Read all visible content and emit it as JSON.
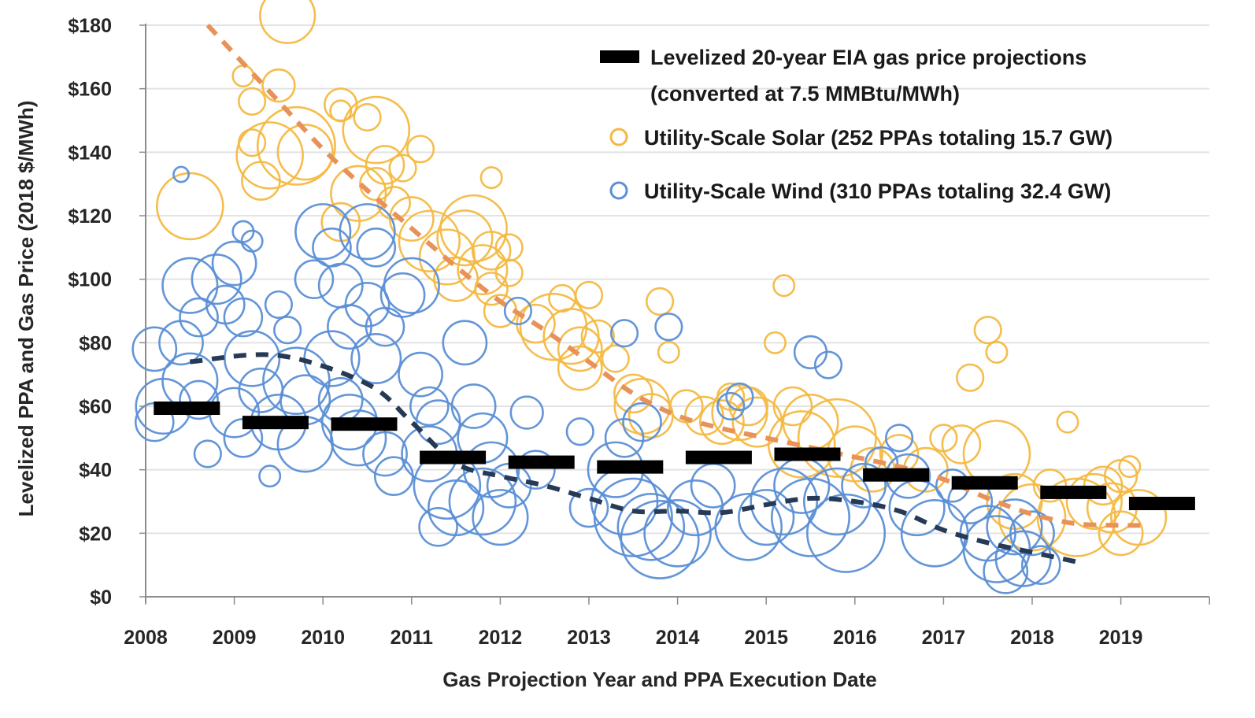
{
  "chart_data": {
    "type": "scatter",
    "title": "",
    "xlabel": "Gas Projection Year and PPA Execution Date",
    "ylabel": "Levelized PPA and Gas Price (2018 $/MWh)",
    "xlim": [
      2008,
      2020
    ],
    "ylim": [
      0,
      180
    ],
    "grid": true,
    "legend_position": "top-right",
    "x_ticks": [
      "2008",
      "2009",
      "2010",
      "2011",
      "2012",
      "2013",
      "2014",
      "2015",
      "2016",
      "2017",
      "2018",
      "2019"
    ],
    "y_ticks": [
      "$0",
      "$20",
      "$40",
      "$60",
      "$80",
      "$100",
      "$120",
      "$140",
      "$160",
      "$180"
    ],
    "y_tick_values": [
      0,
      20,
      40,
      60,
      80,
      100,
      120,
      140,
      160,
      180
    ],
    "colors": {
      "solar": "#F4B942",
      "wind": "#5B8FD6",
      "gas": "#000000",
      "solar_trend": "#E8925A",
      "wind_trend": "#263A55",
      "grid": "#E3E3E3",
      "axis": "#8C8C8C"
    },
    "legend": [
      {
        "key": "gas",
        "line1": "Levelized 20-year EIA gas price projections",
        "line2": "(converted at 7.5 MMBtu/MWh)"
      },
      {
        "key": "solar",
        "line1": "Utility-Scale Solar (252 PPAs totaling 15.7 GW)"
      },
      {
        "key": "wind",
        "line1": "Utility-Scale Wind (310 PPAs totaling 32.4 GW)"
      }
    ],
    "series": [
      {
        "name": "Levelized 20-year EIA gas price projections",
        "kind": "gas-bars",
        "x": [
          2008,
          2009,
          2010,
          2011,
          2012,
          2013,
          2014,
          2015,
          2016,
          2017,
          2018,
          2019
        ],
        "values": [
          59.5,
          55,
          54.5,
          44,
          42.5,
          41,
          44,
          45,
          38.5,
          36,
          33,
          29.5
        ]
      },
      {
        "name": "Utility-Scale Wind trend",
        "kind": "trend",
        "x": [
          2008.5,
          2009.5,
          2010.5,
          2011.0,
          2011.5,
          2012.0,
          2012.5,
          2013.0,
          2013.5,
          2014.0,
          2014.5,
          2015.0,
          2015.5,
          2016.0,
          2016.5,
          2017.0,
          2017.5,
          2018.0,
          2018.5
        ],
        "values": [
          74,
          76,
          67,
          55,
          42,
          38,
          35,
          31,
          27,
          27,
          26.5,
          29,
          31,
          30,
          27,
          21,
          17,
          14,
          11
        ]
      },
      {
        "name": "Utility-Scale Solar trend",
        "kind": "trend",
        "x": [
          2008.7,
          2009.5,
          2010.0,
          2010.5,
          2011.0,
          2011.5,
          2012.0,
          2012.5,
          2013.0,
          2013.5,
          2014.0,
          2014.5,
          2015.0,
          2015.5,
          2016.0,
          2016.5,
          2017.0,
          2017.5,
          2018.0,
          2018.5,
          2019.0,
          2019.3
        ],
        "values": [
          180,
          156,
          141,
          128,
          116,
          104,
          93,
          84,
          74,
          64,
          57,
          53,
          50,
          47,
          44,
          41,
          37,
          31,
          26,
          23,
          22.5,
          22.5
        ]
      },
      {
        "name": "Utility-Scale Solar (252 PPAs totaling 15.7 GW)",
        "kind": "bubbles",
        "points": [
          [
            2008.5,
            123,
            10
          ],
          [
            2009.6,
            183,
            8
          ],
          [
            2009.1,
            164,
            2
          ],
          [
            2009.5,
            161,
            4
          ],
          [
            2009.2,
            156,
            3
          ],
          [
            2009.4,
            139,
            10
          ],
          [
            2009.2,
            143,
            3
          ],
          [
            2009.3,
            131,
            5
          ],
          [
            2009.8,
            140,
            8
          ],
          [
            2009.7,
            142,
            12
          ],
          [
            2010.2,
            155,
            4
          ],
          [
            2010.2,
            153,
            2
          ],
          [
            2010.5,
            151,
            3
          ],
          [
            2010.6,
            147,
            10
          ],
          [
            2010.7,
            136,
            5
          ],
          [
            2010.6,
            130,
            4
          ],
          [
            2010.4,
            127,
            8
          ],
          [
            2010.2,
            118,
            5
          ],
          [
            2010.8,
            124,
            4
          ],
          [
            2010.9,
            135,
            3
          ],
          [
            2011.1,
            141,
            3
          ],
          [
            2011.0,
            119,
            6
          ],
          [
            2011.2,
            112,
            9
          ],
          [
            2011.4,
            107,
            8
          ],
          [
            2011.5,
            100,
            6
          ],
          [
            2011.6,
            113,
            8
          ],
          [
            2011.7,
            116,
            10
          ],
          [
            2011.9,
            109,
            5
          ],
          [
            2011.8,
            103,
            7
          ],
          [
            2011.9,
            97,
            4
          ],
          [
            2012.1,
            102,
            3
          ],
          [
            2012.1,
            110,
            3
          ],
          [
            2011.9,
            132,
            2
          ],
          [
            2012.0,
            90,
            4
          ],
          [
            2012.4,
            86,
            5
          ],
          [
            2012.6,
            85,
            10
          ],
          [
            2012.8,
            82,
            8
          ],
          [
            2012.7,
            94,
            3
          ],
          [
            2013.0,
            95,
            3
          ],
          [
            2012.9,
            78,
            6
          ],
          [
            2013.1,
            82,
            4
          ],
          [
            2013.3,
            75,
            3
          ],
          [
            2012.9,
            72,
            6
          ],
          [
            2013.5,
            64,
            5
          ],
          [
            2013.6,
            60,
            8
          ],
          [
            2013.8,
            93,
            3
          ],
          [
            2013.9,
            77,
            2
          ],
          [
            2013.7,
            57,
            6
          ],
          [
            2014.1,
            60,
            4
          ],
          [
            2014.3,
            57,
            5
          ],
          [
            2014.5,
            55,
            6
          ],
          [
            2014.7,
            58,
            8
          ],
          [
            2014.8,
            60,
            5
          ],
          [
            2014.9,
            55,
            7
          ],
          [
            2014.6,
            63,
            3
          ],
          [
            2015.2,
            98,
            2
          ],
          [
            2015.1,
            80,
            2
          ],
          [
            2015.3,
            60,
            5
          ],
          [
            2015.5,
            55,
            8
          ],
          [
            2015.4,
            48,
            10
          ],
          [
            2015.8,
            50,
            12
          ],
          [
            2016.0,
            45,
            8
          ],
          [
            2016.2,
            40,
            6
          ],
          [
            2016.5,
            45,
            5
          ],
          [
            2016.8,
            40,
            6
          ],
          [
            2017.0,
            50,
            3
          ],
          [
            2017.2,
            48,
            5
          ],
          [
            2017.3,
            69,
            3
          ],
          [
            2017.5,
            84,
            3
          ],
          [
            2017.6,
            77,
            2
          ],
          [
            2017.6,
            45,
            10
          ],
          [
            2017.8,
            30,
            8
          ],
          [
            2018.0,
            25,
            10
          ],
          [
            2018.2,
            35,
            4
          ],
          [
            2018.4,
            55,
            2
          ],
          [
            2018.5,
            25,
            12
          ],
          [
            2018.7,
            30,
            8
          ],
          [
            2018.8,
            35,
            5
          ],
          [
            2019.0,
            38,
            4
          ],
          [
            2019.1,
            41,
            2
          ],
          [
            2019.2,
            25,
            8
          ],
          [
            2019.0,
            20,
            6
          ],
          [
            2018.9,
            28,
            7
          ]
        ]
      },
      {
        "name": "Utility-Scale Wind (310 PPAs totaling 32.4 GW)",
        "kind": "bubbles",
        "points": [
          [
            2008.1,
            78,
            6
          ],
          [
            2008.2,
            60,
            8
          ],
          [
            2008.1,
            55,
            5
          ],
          [
            2008.4,
            133,
            1
          ],
          [
            2008.5,
            98,
            8
          ],
          [
            2008.6,
            88,
            5
          ],
          [
            2008.4,
            80,
            6
          ],
          [
            2008.5,
            68,
            8
          ],
          [
            2008.6,
            62,
            5
          ],
          [
            2008.7,
            45,
            3
          ],
          [
            2008.8,
            100,
            7
          ],
          [
            2008.9,
            92,
            5
          ],
          [
            2009.0,
            105,
            6
          ],
          [
            2009.1,
            115,
            2
          ],
          [
            2009.2,
            112,
            2
          ],
          [
            2009.1,
            88,
            5
          ],
          [
            2009.2,
            75,
            8
          ],
          [
            2009.3,
            65,
            6
          ],
          [
            2009.0,
            58,
            7
          ],
          [
            2009.1,
            50,
            5
          ],
          [
            2009.4,
            38,
            2
          ],
          [
            2009.5,
            92,
            3
          ],
          [
            2009.6,
            84,
            3
          ],
          [
            2009.7,
            68,
            10
          ],
          [
            2009.8,
            62,
            7
          ],
          [
            2009.5,
            55,
            8
          ],
          [
            2009.8,
            48,
            8
          ],
          [
            2009.9,
            100,
            5
          ],
          [
            2010.0,
            115,
            8
          ],
          [
            2010.1,
            110,
            5
          ],
          [
            2010.2,
            98,
            6
          ],
          [
            2010.3,
            85,
            6
          ],
          [
            2010.1,
            75,
            8
          ],
          [
            2010.2,
            62,
            6
          ],
          [
            2010.3,
            55,
            8
          ],
          [
            2010.5,
            115,
            8
          ],
          [
            2010.6,
            110,
            5
          ],
          [
            2010.5,
            92,
            6
          ],
          [
            2010.7,
            85,
            5
          ],
          [
            2010.6,
            75,
            7
          ],
          [
            2010.4,
            50,
            8
          ],
          [
            2010.7,
            45,
            6
          ],
          [
            2010.8,
            38,
            5
          ],
          [
            2010.9,
            95,
            6
          ],
          [
            2011.0,
            98,
            8
          ],
          [
            2011.1,
            70,
            6
          ],
          [
            2011.2,
            60,
            5
          ],
          [
            2011.3,
            55,
            6
          ],
          [
            2011.2,
            45,
            8
          ],
          [
            2011.4,
            35,
            10
          ],
          [
            2011.5,
            28,
            8
          ],
          [
            2011.3,
            22,
            5
          ],
          [
            2011.6,
            80,
            6
          ],
          [
            2011.7,
            60,
            6
          ],
          [
            2011.8,
            50,
            7
          ],
          [
            2011.9,
            40,
            8
          ],
          [
            2011.8,
            30,
            10
          ],
          [
            2012.0,
            25,
            8
          ],
          [
            2012.1,
            35,
            6
          ],
          [
            2012.2,
            90,
            3
          ],
          [
            2012.3,
            58,
            4
          ],
          [
            2012.4,
            40,
            5
          ],
          [
            2012.9,
            52,
            3
          ],
          [
            2013.0,
            28,
            5
          ],
          [
            2013.3,
            40,
            8
          ],
          [
            2013.4,
            30,
            10
          ],
          [
            2013.5,
            25,
            12
          ],
          [
            2013.4,
            50,
            5
          ],
          [
            2013.6,
            55,
            5
          ],
          [
            2013.4,
            83,
            3
          ],
          [
            2013.9,
            85,
            3
          ],
          [
            2013.7,
            22,
            10
          ],
          [
            2013.8,
            18,
            12
          ],
          [
            2014.0,
            20,
            10
          ],
          [
            2014.2,
            28,
            8
          ],
          [
            2014.4,
            35,
            6
          ],
          [
            2014.6,
            60,
            3
          ],
          [
            2014.7,
            63,
            3
          ],
          [
            2014.8,
            22,
            10
          ],
          [
            2015.0,
            25,
            8
          ],
          [
            2015.2,
            30,
            10
          ],
          [
            2015.4,
            35,
            8
          ],
          [
            2015.5,
            77,
            4
          ],
          [
            2015.7,
            73,
            3
          ],
          [
            2015.5,
            25,
            12
          ],
          [
            2015.8,
            30,
            10
          ],
          [
            2015.9,
            20,
            12
          ],
          [
            2016.1,
            35,
            6
          ],
          [
            2016.3,
            42,
            4
          ],
          [
            2016.5,
            50,
            3
          ],
          [
            2016.6,
            38,
            6
          ],
          [
            2016.7,
            28,
            8
          ],
          [
            2016.9,
            20,
            10
          ],
          [
            2017.1,
            35,
            4
          ],
          [
            2017.3,
            30,
            6
          ],
          [
            2017.5,
            20,
            8
          ],
          [
            2017.6,
            15,
            10
          ],
          [
            2017.8,
            22,
            8
          ],
          [
            2017.9,
            12,
            8
          ],
          [
            2018.0,
            20,
            6
          ],
          [
            2018.1,
            10,
            5
          ],
          [
            2017.7,
            8,
            6
          ]
        ]
      }
    ]
  }
}
